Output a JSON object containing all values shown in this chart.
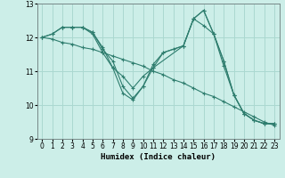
{
  "xlabel": "Humidex (Indice chaleur)",
  "bg_color": "#cceee8",
  "line_color": "#2e7d6e",
  "grid_color": "#aad8d0",
  "xlim": [
    -0.5,
    23.5
  ],
  "ylim": [
    9,
    13
  ],
  "yticks": [
    9,
    10,
    11,
    12,
    13
  ],
  "xticks": [
    0,
    1,
    2,
    3,
    4,
    5,
    6,
    7,
    8,
    9,
    10,
    11,
    12,
    13,
    14,
    15,
    16,
    17,
    18,
    19,
    20,
    21,
    22,
    23
  ],
  "series": [
    {
      "x": [
        0,
        1,
        2,
        3,
        4,
        5,
        6,
        7,
        8,
        9,
        10,
        11,
        12,
        13,
        14,
        15,
        16,
        17,
        18,
        19,
        20,
        21,
        22,
        23
      ],
      "y": [
        12.0,
        12.1,
        12.3,
        12.3,
        12.3,
        12.15,
        11.65,
        11.3,
        10.55,
        10.2,
        10.55,
        11.1,
        11.55,
        11.65,
        11.75,
        12.55,
        12.35,
        12.1,
        11.15,
        10.3,
        9.75,
        9.55,
        9.45,
        9.45
      ]
    },
    {
      "x": [
        2,
        3,
        4,
        5,
        6,
        7,
        8,
        9,
        10,
        11,
        14,
        15,
        16,
        17,
        18,
        19,
        20,
        21,
        22,
        23
      ],
      "y": [
        12.3,
        12.3,
        12.3,
        12.1,
        11.55,
        11.1,
        10.85,
        10.5,
        10.85,
        11.1,
        11.75,
        12.55,
        12.8,
        12.1,
        11.3,
        10.3,
        9.75,
        9.55,
        9.45,
        9.45
      ]
    },
    {
      "x": [
        0,
        1,
        2,
        3,
        4,
        5,
        6,
        7,
        8,
        9,
        10,
        11,
        12,
        13,
        14,
        15,
        16,
        17,
        18,
        19,
        20,
        21,
        22,
        23
      ],
      "y": [
        12.0,
        11.95,
        11.85,
        11.8,
        11.7,
        11.65,
        11.55,
        11.45,
        11.35,
        11.25,
        11.15,
        11.0,
        10.9,
        10.75,
        10.65,
        10.5,
        10.35,
        10.25,
        10.1,
        9.95,
        9.8,
        9.65,
        9.5,
        9.4
      ]
    },
    {
      "x": [
        0,
        1,
        2,
        3,
        4,
        5,
        6,
        7,
        8,
        9,
        10,
        11,
        12,
        14,
        15,
        16,
        17,
        18,
        19,
        20,
        21,
        22,
        23
      ],
      "y": [
        12.0,
        12.1,
        12.3,
        12.3,
        12.3,
        12.15,
        11.7,
        11.1,
        10.35,
        10.15,
        10.55,
        11.2,
        11.55,
        11.75,
        12.55,
        12.8,
        12.1,
        11.3,
        10.3,
        9.75,
        9.55,
        9.45,
        9.45
      ]
    }
  ]
}
